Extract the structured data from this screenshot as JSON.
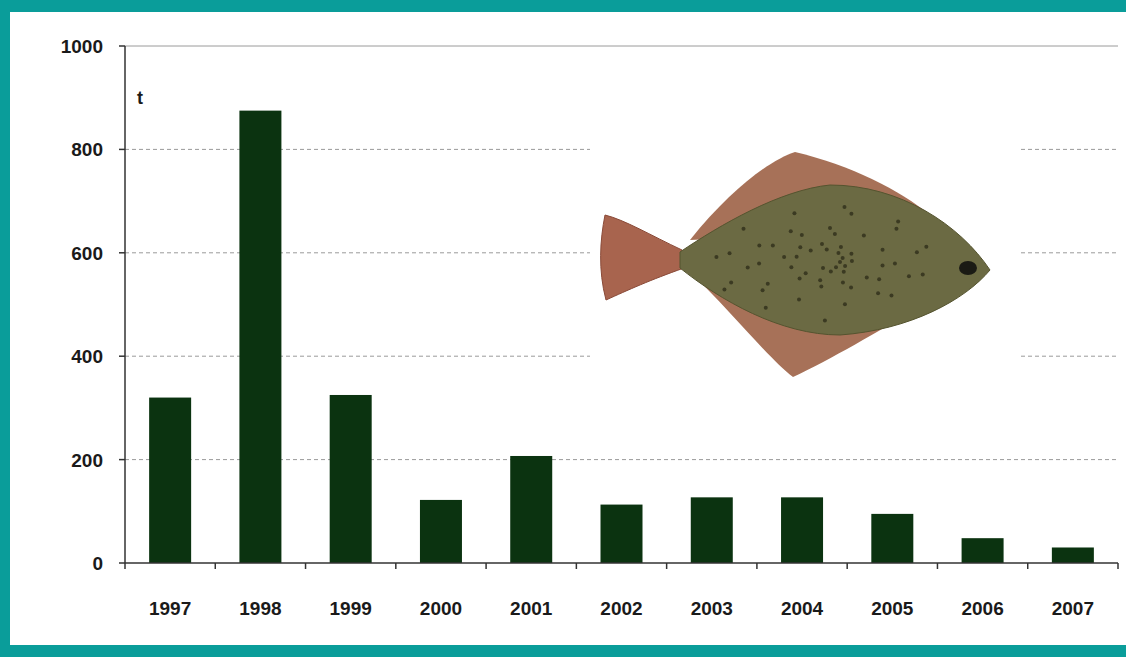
{
  "chart_data": {
    "type": "bar",
    "ylabel": "t",
    "categories": [
      "1997",
      "1998",
      "1999",
      "2000",
      "2001",
      "2002",
      "2003",
      "2004",
      "2005",
      "2006",
      "2007"
    ],
    "values": [
      320,
      875,
      325,
      122,
      207,
      113,
      127,
      127,
      95,
      48,
      30
    ],
    "color": "#0b3310",
    "ylim": [
      0,
      1000
    ],
    "yticks": [
      0,
      200,
      400,
      600,
      800,
      1000
    ],
    "grid": true
  }
}
